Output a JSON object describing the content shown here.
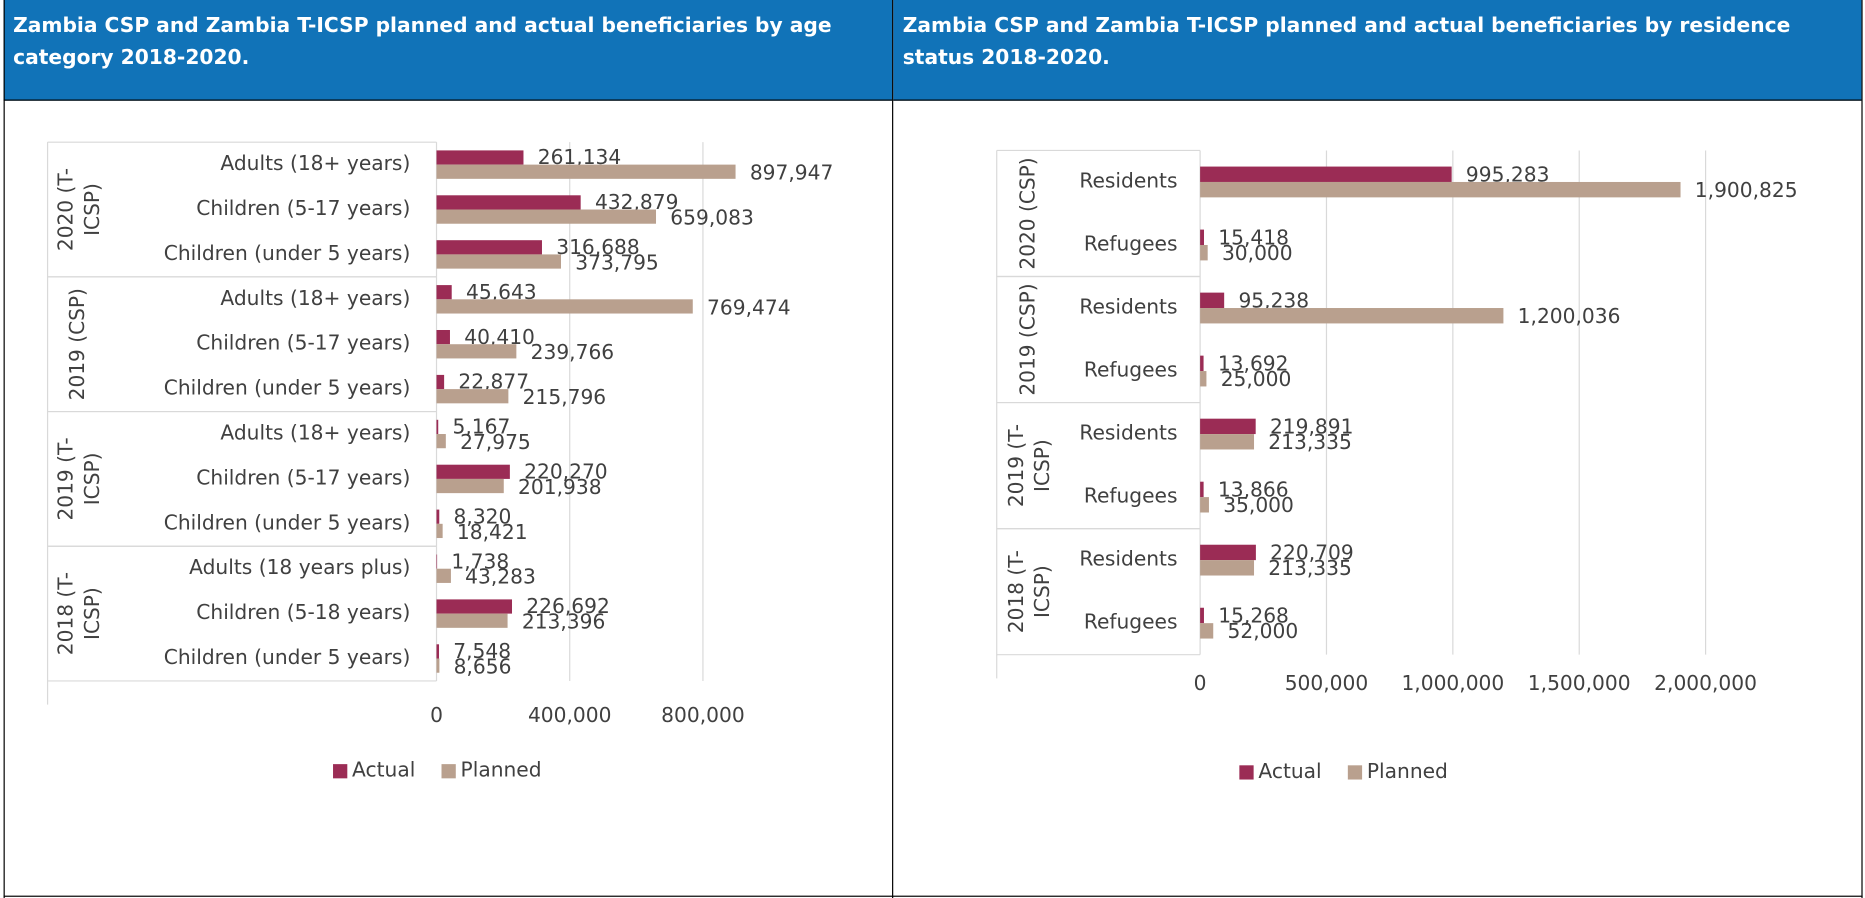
{
  "chart_data": [
    {
      "type": "bar",
      "title": "Zambia CSP and Zambia T-ICSP planned and actual beneficiaries by age category 2018-2020.",
      "groups": [
        {
          "label": "2020 (T-ICSP)",
          "categories": [
            "Adults (18+ years)",
            "Children (5-17 years)",
            "Children (under 5 years)"
          ]
        },
        {
          "label": "2019 (CSP)",
          "categories": [
            "Adults (18+ years)",
            "Children (5-17 years)",
            "Children (under 5 years)"
          ]
        },
        {
          "label": "2019 (T-ICSP)",
          "categories": [
            "Adults (18+ years)",
            "Children (5-17 years)",
            "Children (under 5 years)"
          ]
        },
        {
          "label": "2018 (T-ICSP)",
          "categories": [
            "Adults (18 years plus)",
            "Children (5-18 years)",
            "Children (under 5 years)"
          ]
        }
      ],
      "series": [
        {
          "name": "Actual",
          "color": "#9b2c55",
          "values": [
            261134,
            432879,
            316688,
            45643,
            40410,
            22877,
            5167,
            220270,
            8320,
            1738,
            226692,
            7548
          ],
          "value_labels": [
            "261,134",
            "432,879",
            "316,688",
            "45,643",
            "40,410",
            "22,877",
            "5,167",
            "220,270",
            "8,320",
            "1,738",
            "226,692",
            "7,548"
          ]
        },
        {
          "name": "Planned",
          "color": "#b9a08e",
          "values": [
            897947,
            659083,
            373795,
            769474,
            239766,
            215796,
            27975,
            201938,
            18421,
            43283,
            213396,
            8656
          ],
          "value_labels": [
            "897,947",
            "659,083",
            "373,795",
            "769,474",
            "239,766",
            "215,796",
            "27,975",
            "201,938",
            "18,421",
            "43,283",
            "213,396",
            "8,656"
          ]
        }
      ],
      "xlim": [
        0,
        1000000
      ],
      "xticks": [
        0,
        {
          "value": 400000,
          "label": "400,000"
        },
        {
          "value": 800000,
          "label": "800,000"
        }
      ],
      "grid": true,
      "legend": "bottom"
    },
    {
      "type": "bar",
      "title": "Zambia CSP and Zambia T-ICSP planned and actual beneficiaries by residence status 2018-2020.",
      "groups": [
        {
          "label": "2020 (CSP)",
          "categories": [
            "Residents",
            "Refugees"
          ]
        },
        {
          "label": "2019 (CSP)",
          "categories": [
            "Residents",
            "Refugees"
          ]
        },
        {
          "label": "2019 (T-ICSP)",
          "categories": [
            "Residents",
            "Refugees"
          ]
        },
        {
          "label": "2018 (T-ICSP)",
          "categories": [
            "Residents",
            "Refugees"
          ]
        }
      ],
      "series": [
        {
          "name": "Actual",
          "color": "#9b2c55",
          "values": [
            995283,
            15418,
            95238,
            13692,
            219891,
            13866,
            220709,
            15268
          ],
          "value_labels": [
            "995,283",
            "15,418",
            "95,238",
            "13,692",
            "219,891",
            "13,866",
            "220,709",
            "15,268"
          ]
        },
        {
          "name": "Planned",
          "color": "#b9a08e",
          "values": [
            1900825,
            30000,
            1200036,
            25000,
            213335,
            35000,
            213335,
            52000
          ],
          "value_labels": [
            "1,900,825",
            "30,000",
            "1,200,036",
            "25,000",
            "213,335",
            "35,000",
            "213,335",
            "52,000"
          ]
        }
      ],
      "xlim": [
        0,
        2000000
      ],
      "xticks": [
        0,
        {
          "value": 500000,
          "label": "500,000"
        },
        {
          "value": 1000000,
          "label": "1,000,000"
        },
        {
          "value": 1500000,
          "label": "1,500,000"
        },
        {
          "value": 2000000,
          "label": "2,000,000"
        }
      ],
      "grid": true,
      "legend": "bottom"
    }
  ]
}
